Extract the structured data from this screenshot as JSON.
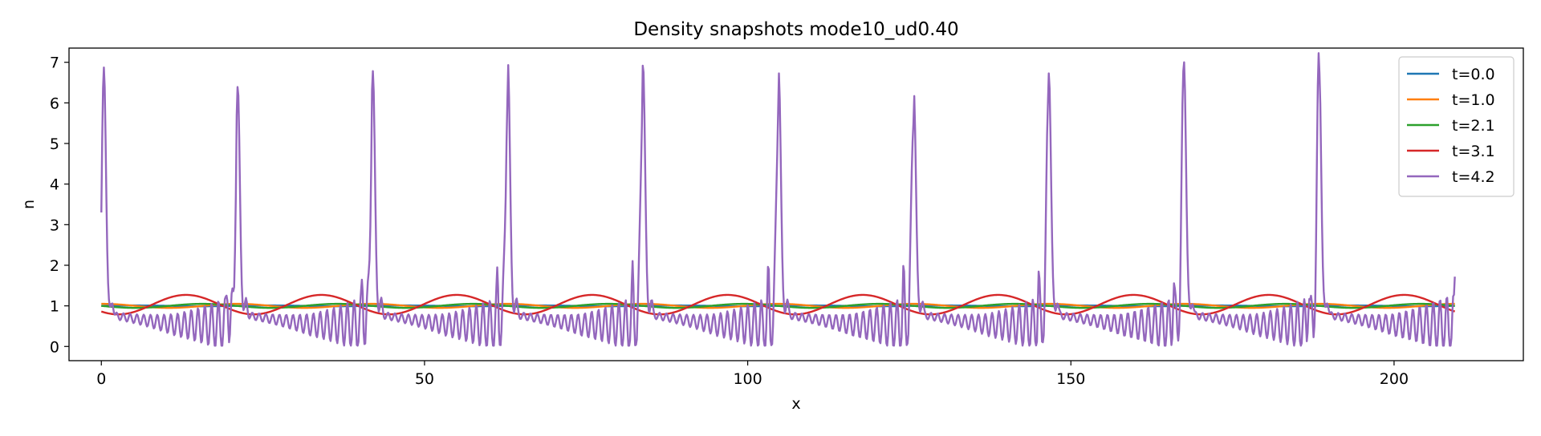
{
  "chart_data": {
    "type": "line",
    "title": "Density snapshots  mode10_ud0.40",
    "xlabel": "x",
    "ylabel": "n",
    "xlim": [
      -5,
      220
    ],
    "ylim": [
      -0.35,
      7.35
    ],
    "xticks": [
      0,
      50,
      100,
      150,
      200
    ],
    "yticks": [
      0,
      1,
      2,
      3,
      4,
      5,
      6,
      7
    ],
    "legend_position": "top-right",
    "grid": false,
    "domain_length": 209.4,
    "period": 20.94,
    "series": [
      {
        "name": "t=0.0",
        "color": "#1f77b4",
        "form": "sine",
        "mean": 1.0,
        "amplitude": 0.01,
        "phase": 0
      },
      {
        "name": "t=1.0",
        "color": "#ff7f0e",
        "form": "sine",
        "mean": 1.0,
        "amplitude": 0.05,
        "phase": 1.57
      },
      {
        "name": "t=2.1",
        "color": "#2ca02c",
        "form": "sine",
        "mean": 1.0,
        "amplitude": 0.05,
        "phase": 3.14
      },
      {
        "name": "t=3.1",
        "color": "#d62728",
        "form": "sine",
        "mean": 1.03,
        "amplitude": 0.24,
        "phase": -2.36
      },
      {
        "name": "t=4.2",
        "color": "#9467bd",
        "form": "spikes",
        "start_value": 3.3,
        "spike_centers": [
          0.4,
          21.1,
          42.0,
          62.9,
          83.8,
          104.8,
          125.7,
          146.6,
          167.5,
          188.4
        ],
        "spike_peaks": [
          6.82,
          6.38,
          6.78,
          7.03,
          7.04,
          6.82,
          6.38,
          6.78,
          7.03,
          7.04
        ],
        "trough_level": 0.58,
        "oscillation_amplitude": 0.45,
        "end_value": 1.72
      }
    ]
  }
}
